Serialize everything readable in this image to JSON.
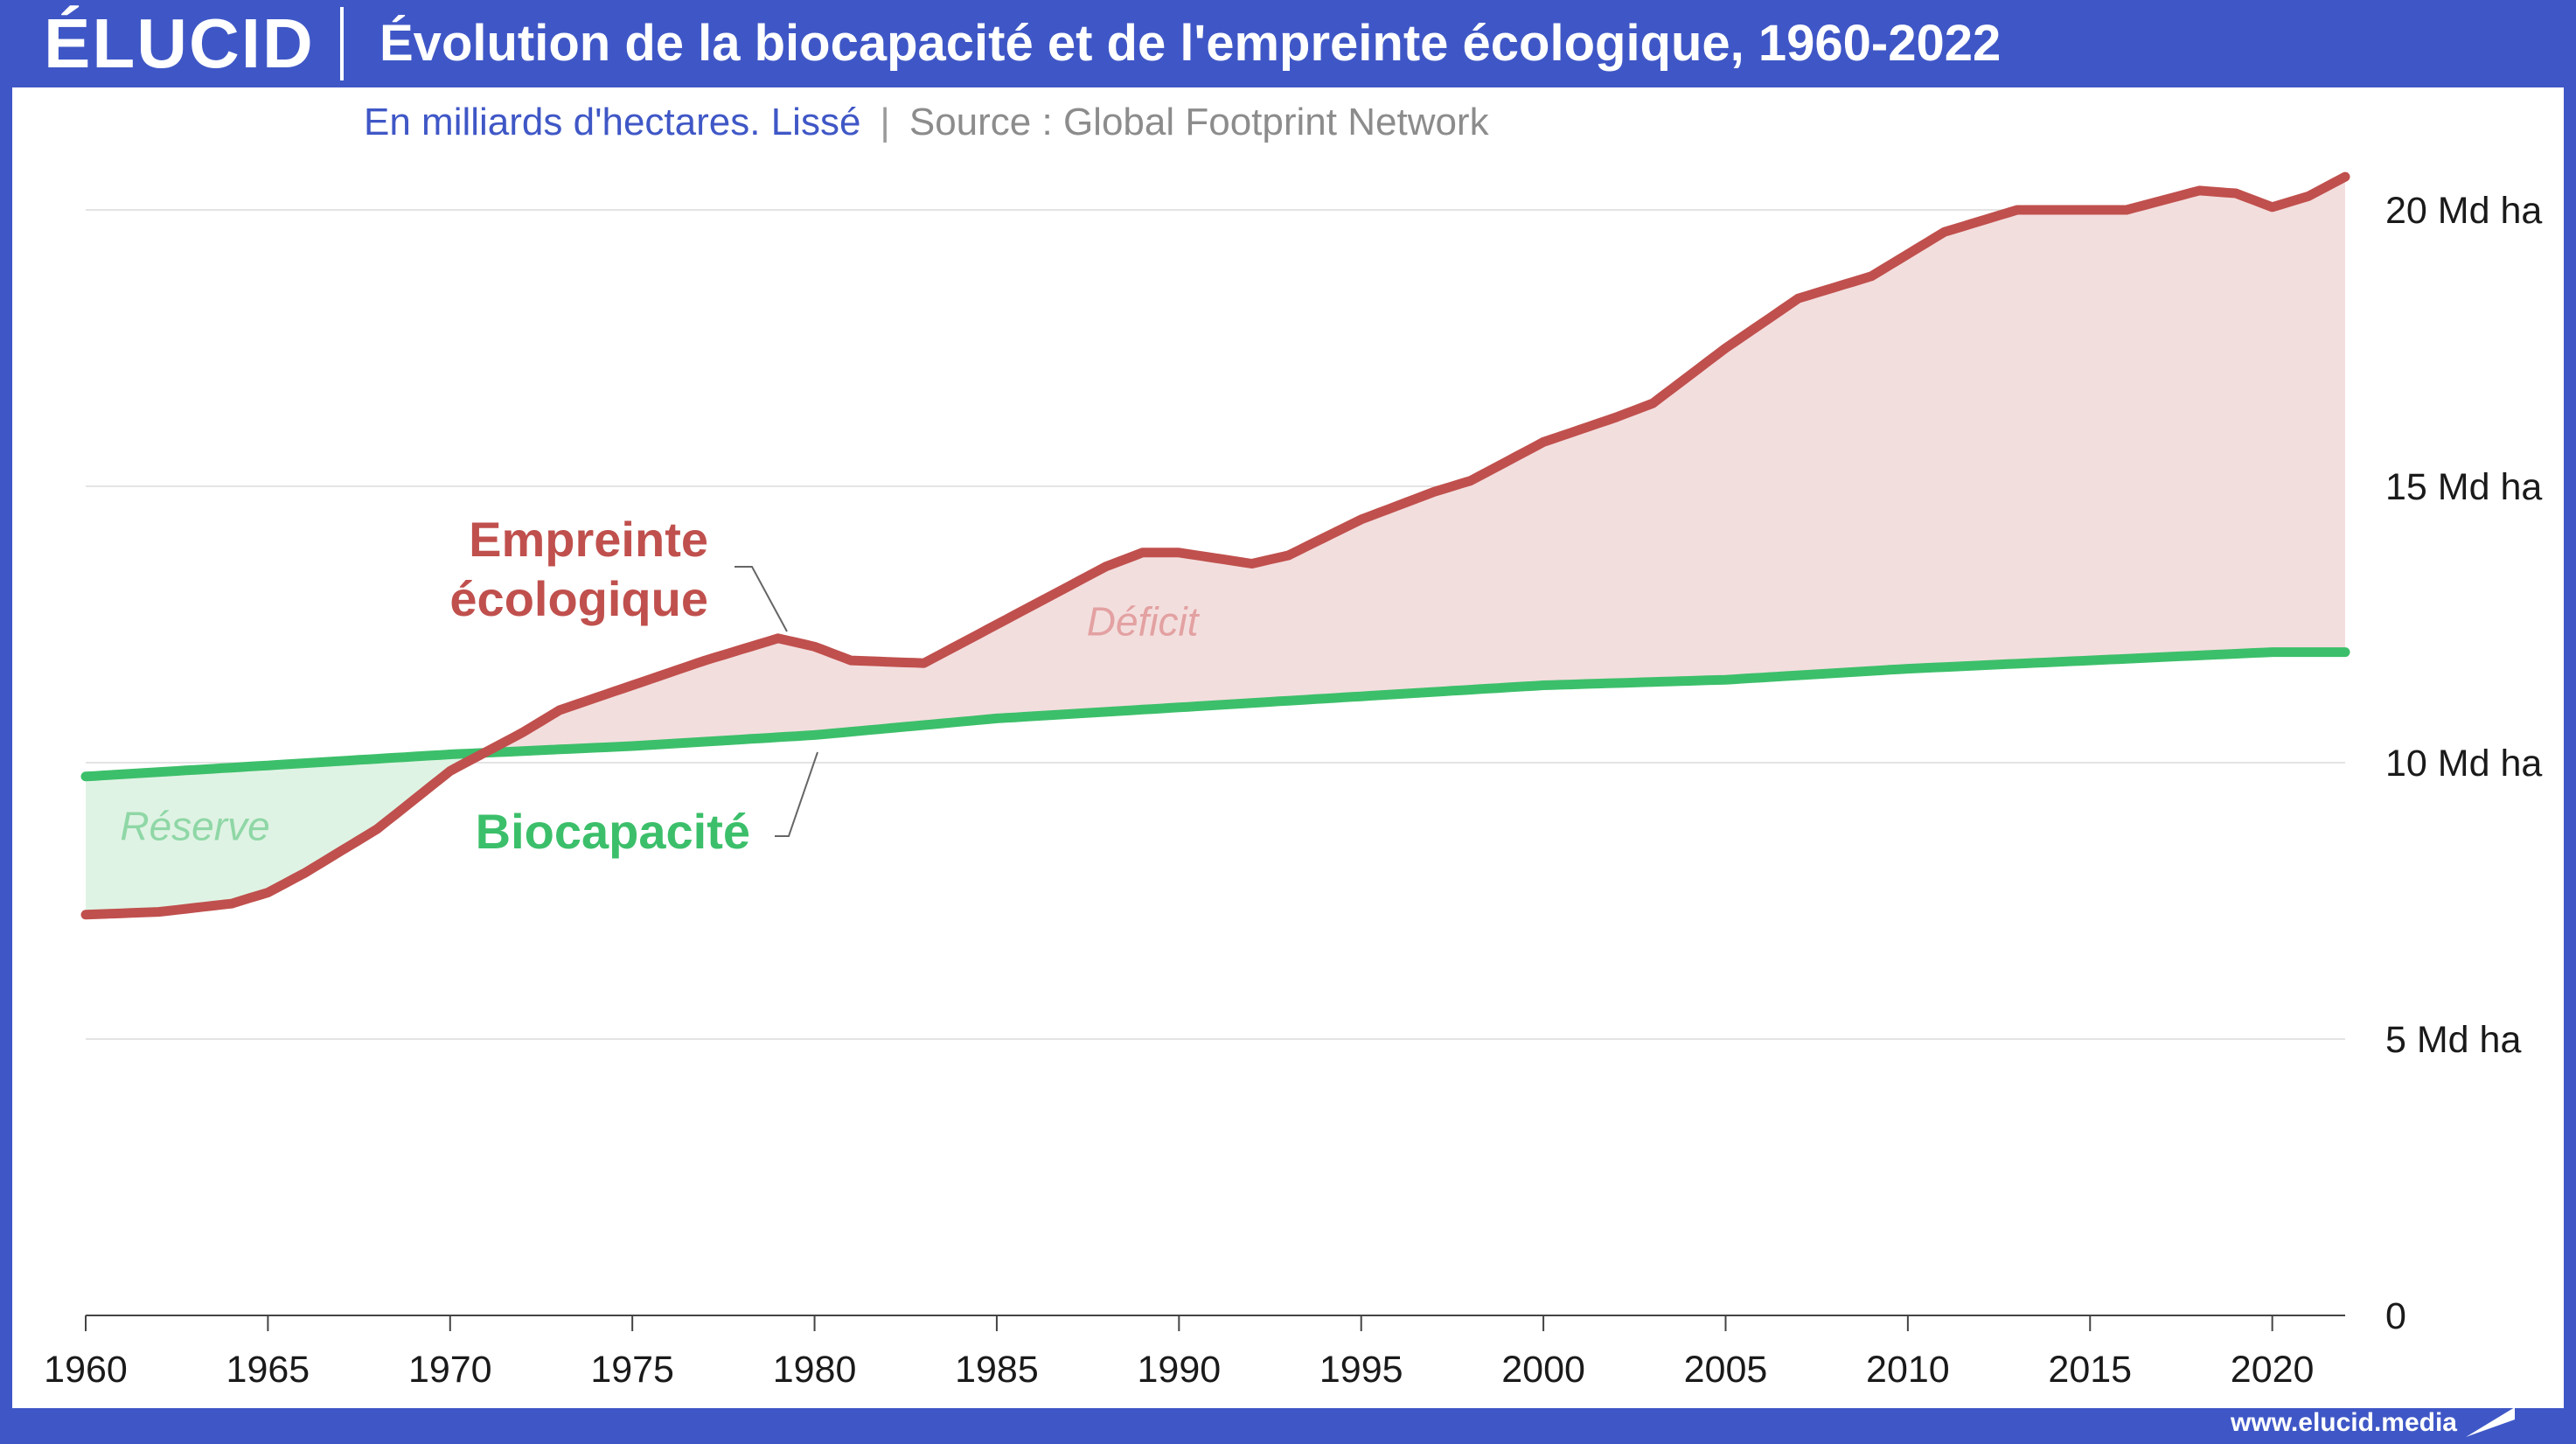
{
  "header": {
    "logo": "ÉLUCID",
    "title": "Évolution de la biocapacité et de l'empreinte écologique, 1960-2022"
  },
  "subtitle": "En milliards d'hectares. Lissé",
  "separator": "|",
  "source": "Source : Global Footprint Network",
  "footer": {
    "url": "www.elucid.media"
  },
  "colors": {
    "footprint": "#c0504d",
    "biocapacity": "#3cbf6a",
    "deficit_fill": "#f3dede",
    "reserve_fill": "#dff3e4",
    "grid": "#e4e4e4",
    "brand": "#3f57c6"
  },
  "chart_data": {
    "type": "line",
    "title": "Évolution de la biocapacité et de l'empreinte écologique, 1960-2022",
    "xlabel": "",
    "ylabel": "",
    "xlim": [
      1960,
      2022
    ],
    "ylim": [
      0,
      20
    ],
    "x_ticks": [
      "1960",
      "1965",
      "1970",
      "1975",
      "1980",
      "1985",
      "1990",
      "1995",
      "2000",
      "2005",
      "2010",
      "2015",
      "2020"
    ],
    "y_ticks": [
      {
        "value": 0,
        "label": "0"
      },
      {
        "value": 5,
        "label": "5 Md ha"
      },
      {
        "value": 10,
        "label": "10 Md ha"
      },
      {
        "value": 15,
        "label": "15 Md ha"
      },
      {
        "value": 20,
        "label": "20 Md ha"
      }
    ],
    "grid": true,
    "series": [
      {
        "name": "Empreinte écologique",
        "label_lines": [
          "Empreinte",
          "écologique"
        ],
        "color": "#c0504d",
        "points": [
          [
            1960,
            7.25
          ],
          [
            1962,
            7.3
          ],
          [
            1964,
            7.45
          ],
          [
            1965,
            7.65
          ],
          [
            1966,
            8.0
          ],
          [
            1968,
            8.8
          ],
          [
            1970,
            9.85
          ],
          [
            1972,
            10.55
          ],
          [
            1973,
            10.95
          ],
          [
            1975,
            11.4
          ],
          [
            1977,
            11.85
          ],
          [
            1979,
            12.25
          ],
          [
            1980,
            12.1
          ],
          [
            1981,
            11.85
          ],
          [
            1983,
            11.8
          ],
          [
            1985,
            12.5
          ],
          [
            1987,
            13.2
          ],
          [
            1988,
            13.55
          ],
          [
            1989,
            13.8
          ],
          [
            1990,
            13.8
          ],
          [
            1992,
            13.6
          ],
          [
            1993,
            13.75
          ],
          [
            1995,
            14.4
          ],
          [
            1997,
            14.9
          ],
          [
            1998,
            15.1
          ],
          [
            2000,
            15.8
          ],
          [
            2002,
            16.25
          ],
          [
            2003,
            16.5
          ],
          [
            2005,
            17.5
          ],
          [
            2007,
            18.4
          ],
          [
            2009,
            18.8
          ],
          [
            2010,
            19.2
          ],
          [
            2011,
            19.6
          ],
          [
            2013,
            20.0
          ],
          [
            2015,
            20.0
          ],
          [
            2016,
            20.0
          ],
          [
            2018,
            20.35
          ],
          [
            2019,
            20.3
          ],
          [
            2020,
            20.05
          ],
          [
            2021,
            20.25
          ],
          [
            2022,
            20.6
          ]
        ]
      },
      {
        "name": "Biocapacité",
        "label_lines": [
          "Biocapacité"
        ],
        "color": "#3cbf6a",
        "points": [
          [
            1960,
            9.75
          ],
          [
            1965,
            9.95
          ],
          [
            1970,
            10.15
          ],
          [
            1975,
            10.3
          ],
          [
            1980,
            10.5
          ],
          [
            1985,
            10.8
          ],
          [
            1990,
            11.0
          ],
          [
            1995,
            11.2
          ],
          [
            2000,
            11.4
          ],
          [
            2005,
            11.5
          ],
          [
            2010,
            11.7
          ],
          [
            2015,
            11.85
          ],
          [
            2020,
            12.0
          ],
          [
            2022,
            12.0
          ]
        ]
      }
    ],
    "annotations": [
      {
        "text": "Déficit",
        "x": 1989,
        "y": 12.3
      },
      {
        "text": "Réserve",
        "x": 1963,
        "y": 8.6
      }
    ]
  }
}
